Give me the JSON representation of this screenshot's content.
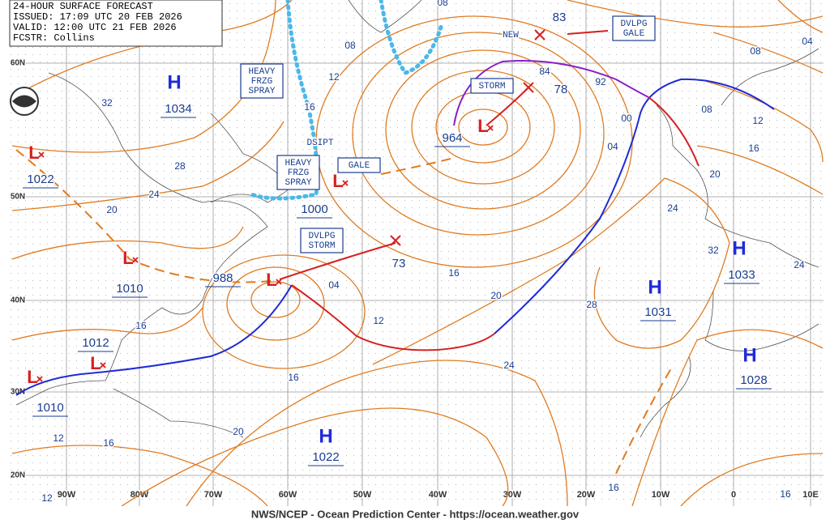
{
  "header": {
    "lines": [
      "24-HOUR SURFACE FORECAST",
      "ISSUED: 17:09 UTC 20 FEB 2026",
      "VALID:  12:00 UTC 21 FEB 2026",
      "FCSTR:  Collins"
    ]
  },
  "latitude_labels": [
    "60N",
    "50N",
    "40N",
    "30N",
    "20N"
  ],
  "longitude_labels": [
    "90W",
    "80W",
    "70W",
    "60W",
    "50W",
    "40W",
    "30W",
    "20W",
    "10W",
    "0",
    "10E"
  ],
  "highs": [
    {
      "symbol": "H",
      "pressure": 1034
    },
    {
      "symbol": "H",
      "pressure": 1033
    },
    {
      "symbol": "H",
      "pressure": 1031
    },
    {
      "symbol": "H",
      "pressure": 1028
    },
    {
      "symbol": "H",
      "pressure": 1022
    }
  ],
  "lows": [
    {
      "symbol": "L",
      "pressure": 1022
    },
    {
      "symbol": "L",
      "pressure": 1010
    },
    {
      "symbol": "L",
      "pressure": 988
    },
    {
      "symbol": "L",
      "pressure": 964
    },
    {
      "symbol": "L",
      "pressure": 1000
    },
    {
      "symbol": "L",
      "pressure": 1012
    },
    {
      "symbol": "L",
      "pressure": 1010
    }
  ],
  "forecast_positions": [
    {
      "pressure": 73
    },
    {
      "pressure": 78
    },
    {
      "pressure": 83
    }
  ],
  "warnings": [
    {
      "lines": [
        "HEAVY",
        "FRZG",
        "SPRAY"
      ]
    },
    {
      "lines": [
        "HEAVY",
        "FRZG",
        "SPRAY"
      ]
    },
    {
      "lines": [
        "GALE"
      ]
    },
    {
      "lines": [
        "DVLPG",
        "STORM"
      ]
    },
    {
      "lines": [
        "DVLPG",
        "GALE"
      ]
    },
    {
      "lines": [
        "STORM"
      ]
    }
  ],
  "notes": [
    "DSIPT",
    "NEW"
  ],
  "isobar_labels": [
    "32",
    "28",
    "24",
    "20",
    "16",
    "12",
    "16",
    "20",
    "16",
    "12",
    "04",
    "16",
    "20",
    "24",
    "28",
    "24",
    "32",
    "24",
    "20",
    "16",
    "12",
    "08",
    "04",
    "00",
    "92",
    "84",
    "08",
    "04",
    "08",
    "08",
    "12",
    "16",
    "16",
    "12",
    "16"
  ],
  "footer": "NWS/NCEP - Ocean Prediction Center - https://ocean.weather.gov"
}
